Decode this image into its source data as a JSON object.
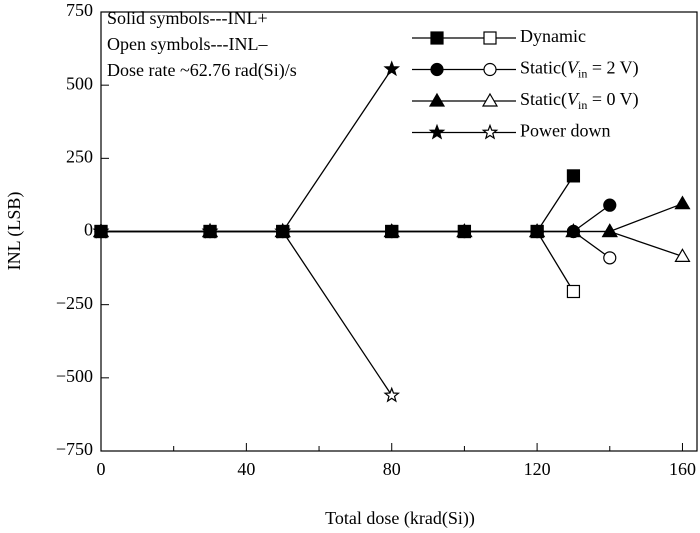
{
  "chart_data": {
    "type": "line",
    "xlabel": "Total dose (krad(Si))",
    "ylabel": "INL (LSB)",
    "annotations": [
      "Solid symbols---INL+",
      "Open symbols---INL–",
      "Dose rate ~62.76 rad(Si)/s"
    ],
    "xlim": [
      0,
      164
    ],
    "ylim": [
      -750,
      750
    ],
    "xticks": [
      0,
      40,
      80,
      120,
      160
    ],
    "xminorticks": [
      20,
      60,
      100,
      140
    ],
    "yticks": [
      {
        "value": -750,
        "label": "−750"
      },
      {
        "value": -500,
        "label": "−500"
      },
      {
        "value": -250,
        "label": "−250"
      },
      0,
      250,
      500,
      750
    ],
    "color": "#000000",
    "series": [
      {
        "name": [
          "Dynamic"
        ],
        "marker": "square",
        "x": [
          0,
          30,
          50,
          80,
          100,
          120,
          130
        ],
        "values": [
          0,
          0,
          0,
          0,
          0,
          0,
          190
        ],
        "values_minus": [
          0,
          0,
          0,
          0,
          0,
          0,
          -205
        ]
      },
      {
        "name": [
          "Static(",
          "V",
          "in",
          " = 2 V)"
        ],
        "marker": "circle",
        "x": [
          0,
          30,
          50,
          80,
          100,
          120,
          130,
          140
        ],
        "values": [
          0,
          0,
          0,
          0,
          0,
          0,
          0,
          90
        ],
        "values_minus": [
          0,
          0,
          0,
          0,
          0,
          0,
          0,
          -90
        ]
      },
      {
        "name": [
          "Static(",
          "V",
          "in",
          " = 0 V)"
        ],
        "marker": "triangle",
        "x": [
          0,
          30,
          50,
          80,
          100,
          120,
          130,
          140,
          160
        ],
        "values": [
          0,
          0,
          0,
          0,
          0,
          0,
          0,
          0,
          95
        ],
        "values_minus": [
          0,
          0,
          0,
          0,
          0,
          0,
          0,
          0,
          -85
        ]
      },
      {
        "name": [
          "Power down"
        ],
        "marker": "star",
        "x": [
          0,
          30,
          50,
          80
        ],
        "values": [
          0,
          0,
          0,
          555
        ],
        "values_minus": [
          0,
          0,
          0,
          -560
        ]
      }
    ]
  }
}
